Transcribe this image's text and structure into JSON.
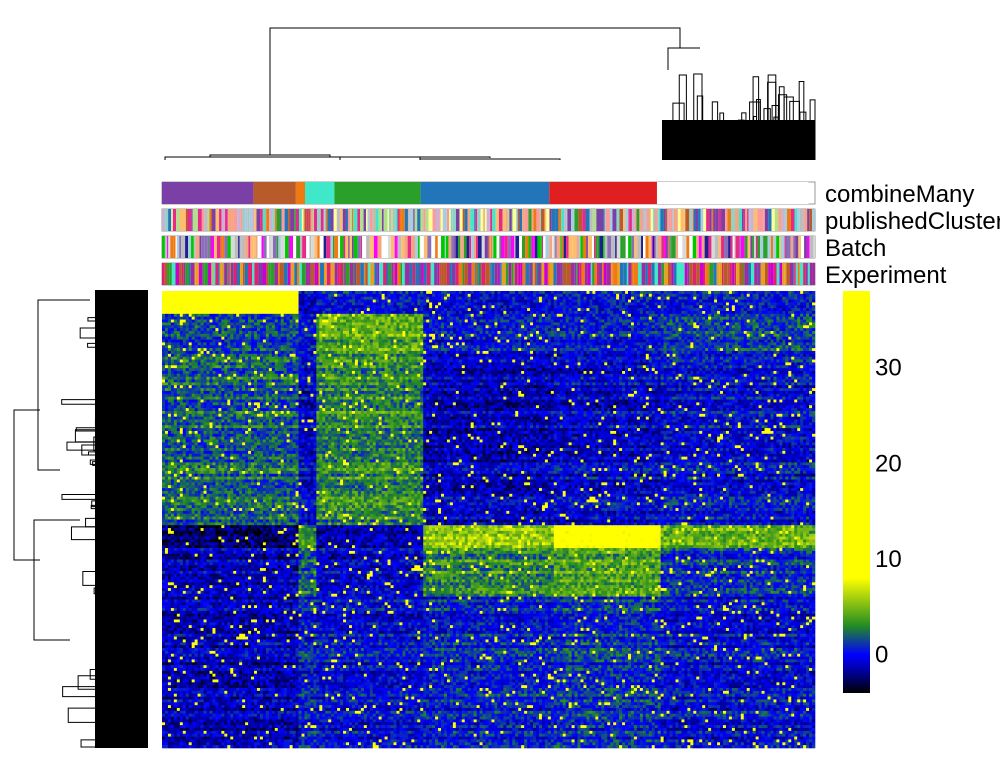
{
  "chart_data": {
    "type": "heatmap",
    "title": "",
    "xlabel": "",
    "ylabel": "",
    "annotation_tracks": [
      {
        "name": "combineMany",
        "kind": "clusters",
        "segments": [
          {
            "color": "#7a40a6",
            "fraction": 0.14
          },
          {
            "color": "#b85a2a",
            "fraction": 0.065
          },
          {
            "color": "#f07a12",
            "fraction": 0.014
          },
          {
            "color": "#3ee8c8",
            "fraction": 0.045
          },
          {
            "color": "#2aa02a",
            "fraction": 0.132
          },
          {
            "color": "#2175b8",
            "fraction": 0.197
          },
          {
            "color": "#e02020",
            "fraction": 0.165
          },
          {
            "color": "#ffffff",
            "fraction": 0.232
          }
        ]
      },
      {
        "name": "publishedClusters",
        "kind": "striped",
        "palette": [
          "#a6cee3",
          "#f4a582",
          "#bdbdbd",
          "#fdbf6f",
          "#cab2d6",
          "#b2df8a",
          "#fb9a99",
          "#7a40a6",
          "#f07a12",
          "#2aa02a",
          "#2175b8",
          "#3ee8c8",
          "#b85a2a",
          "#e7298a",
          "#ffff99",
          "#8dd3c7"
        ]
      },
      {
        "name": "Batch",
        "kind": "striped",
        "palette": [
          "#00c800",
          "#ff00ff",
          "#1f1f8f",
          "#f4a582",
          "#bdbdbd",
          "#fdbf6f",
          "#a6cee3",
          "#7a40a6",
          "#e7298a",
          "#2aa02a",
          "#ffffff",
          "#8a6fb8",
          "#f07a12",
          "#d9d9d9"
        ]
      },
      {
        "name": "Experiment",
        "kind": "striped",
        "palette": [
          "#2175b8",
          "#f07a12",
          "#e02070",
          "#a02aa0",
          "#cc00cc",
          "#2aa02a",
          "#3ee8c8",
          "#b85a2a",
          "#e8a020",
          "#7a40a6"
        ]
      }
    ],
    "colorscale": {
      "stops": [
        {
          "value": -4,
          "color": "#000000"
        },
        {
          "value": -2,
          "color": "#00008b"
        },
        {
          "value": 0,
          "color": "#0000ff"
        },
        {
          "value": 3,
          "color": "#228b22"
        },
        {
          "value": 8,
          "color": "#ffff00"
        },
        {
          "value": 38,
          "color": "#ffff00"
        }
      ],
      "range": [
        -4,
        38
      ],
      "ticks": [
        0,
        10,
        20,
        30
      ],
      "tick_labels": [
        "0",
        "10",
        "20",
        "30"
      ]
    },
    "matrix_description_rows": 160,
    "matrix_description_cols": 220,
    "legend_position": "right",
    "grid": false
  }
}
